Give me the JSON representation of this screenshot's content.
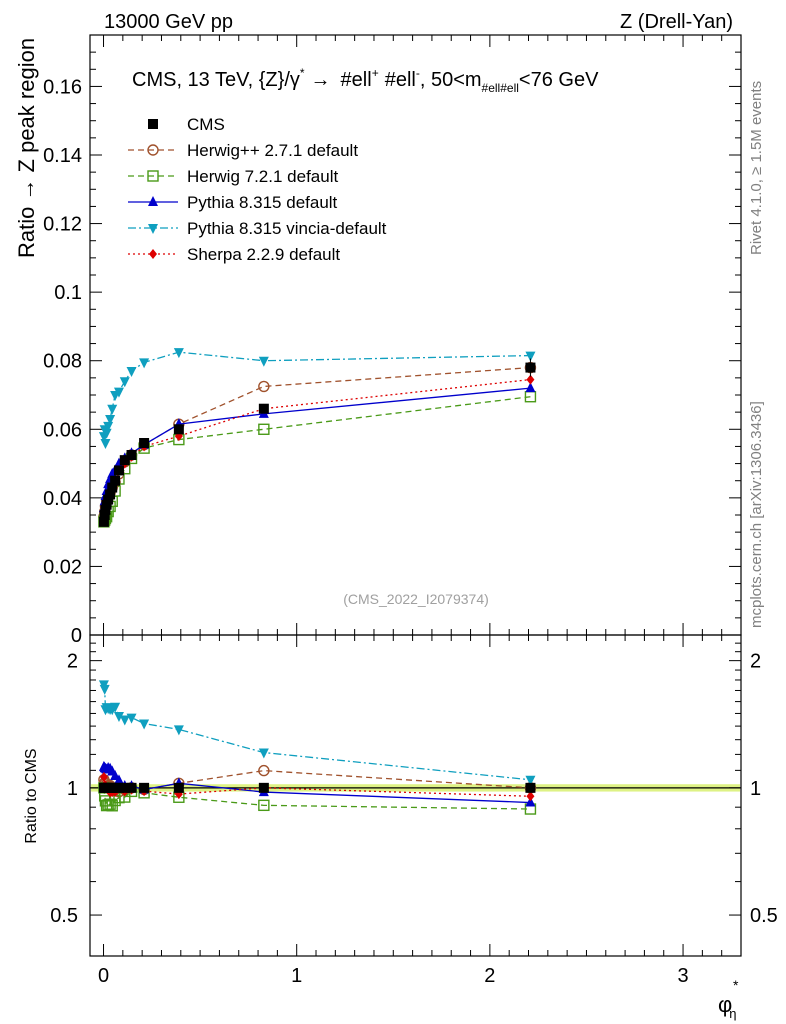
{
  "header": {
    "left": "13000 GeV pp",
    "right": "Z (Drell-Yan)"
  },
  "side_labels": {
    "rivet": "Rivet 4.1.0, ≥ 1.5M events",
    "mcplots": "mcplots.cern.ch [arXiv:1306.3436]"
  },
  "chart_data": {
    "type": "line",
    "title": "CMS, 13 TeV, {Z}/γ* → #ell+ #ell−, 50<m#ell#ell<76 GeV",
    "title_parts": {
      "main": "CMS, 13 TeV, {Z}/γ",
      "star": "*",
      "arrow": "→",
      "ell1": "#ell",
      "ell1_sup": "+",
      "ell2": "#ell",
      "ell2_sup": "-",
      "mass": ", 50<m",
      "mass_sub": "#ell#ell",
      "mass_end": "<76 GeV"
    },
    "watermark": "(CMS_2022_I2079374)",
    "ylabel": "Ratio → Z peak region",
    "ratio_ylabel": "Ratio to CMS",
    "xlabel": "φ",
    "xlabel_sup": "*",
    "xlabel_sub": "η",
    "xlim": [
      -0.07,
      3.3
    ],
    "ylim": [
      0,
      0.175
    ],
    "ratio_ylim": [
      0.4,
      2.3
    ],
    "x_ticks": [
      "0",
      "1",
      "2",
      "3"
    ],
    "y_ticks": [
      "0",
      "0.02",
      "0.04",
      "0.06",
      "0.08",
      "0.1",
      "0.12",
      "0.14",
      "0.16"
    ],
    "ratio_ticks": [
      "0.5",
      "1",
      "2"
    ],
    "x": [
      0.002,
      0.006,
      0.01,
      0.016,
      0.024,
      0.034,
      0.045,
      0.06,
      0.08,
      0.11,
      0.145,
      0.21,
      0.39,
      0.83,
      2.21
    ],
    "series": [
      {
        "name": "CMS",
        "color": "#000000",
        "marker": "square-filled",
        "line": "none",
        "values": [
          0.033,
          0.035,
          0.0365,
          0.038,
          0.0395,
          0.041,
          0.043,
          0.045,
          0.048,
          0.051,
          0.0525,
          0.056,
          0.06,
          0.066,
          0.078
        ]
      },
      {
        "name": "Herwig++ 2.7.1 default",
        "color": "#a0522d",
        "marker": "circle-open",
        "line": "dashed",
        "values": [
          0.0345,
          0.036,
          0.0375,
          0.0388,
          0.04,
          0.0415,
          0.043,
          0.0445,
          0.047,
          0.0505,
          0.0525,
          0.0555,
          0.0615,
          0.0725,
          0.078
        ]
      },
      {
        "name": "Herwig 7.2.1 default",
        "color": "#4a9a18",
        "marker": "square-open",
        "line": "dashed",
        "values": [
          0.033,
          0.0335,
          0.034,
          0.0345,
          0.036,
          0.0375,
          0.039,
          0.042,
          0.0455,
          0.0485,
          0.0515,
          0.0545,
          0.057,
          0.06,
          0.0695
        ]
      },
      {
        "name": "Pythia 8.315 default",
        "color": "#0000cc",
        "marker": "triangle-up-filled",
        "line": "solid",
        "values": [
          0.037,
          0.039,
          0.0405,
          0.042,
          0.044,
          0.0455,
          0.047,
          0.048,
          0.05,
          0.0515,
          0.053,
          0.0555,
          0.0615,
          0.0645,
          0.072
        ]
      },
      {
        "name": "Pythia 8.315 vincia-default",
        "color": "#0f9fbf",
        "marker": "triangle-down-filled",
        "line": "dashdot",
        "values": [
          0.058,
          0.06,
          0.056,
          0.059,
          0.061,
          0.063,
          0.066,
          0.07,
          0.071,
          0.074,
          0.077,
          0.0795,
          0.0825,
          0.08,
          0.0815
        ]
      },
      {
        "name": "Sherpa 2.2.9 default",
        "color": "#dd0000",
        "marker": "diamond-filled",
        "line": "dotted",
        "values": [
          0.035,
          0.0355,
          0.037,
          0.038,
          0.039,
          0.04,
          0.042,
          0.044,
          0.048,
          0.05,
          0.052,
          0.055,
          0.058,
          0.066,
          0.0745
        ]
      }
    ]
  }
}
